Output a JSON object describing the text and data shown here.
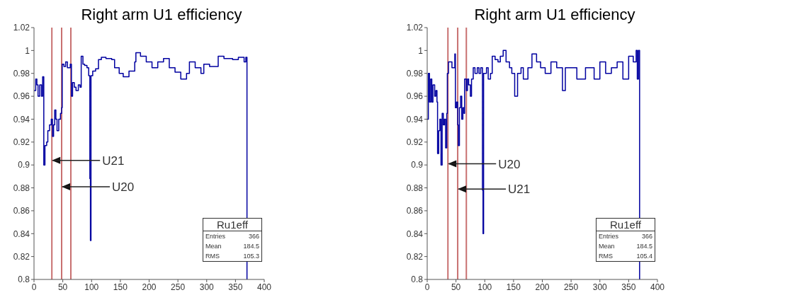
{
  "chart_data": [
    {
      "type": "step",
      "title": "Right arm U1 efficiency",
      "xlim": [
        0,
        400
      ],
      "xticks": [
        0,
        50,
        100,
        150,
        200,
        250,
        300,
        350,
        400
      ],
      "ylim": [
        0.8,
        1.02
      ],
      "yticks": [
        0.8,
        0.82,
        0.84,
        0.86,
        0.88,
        0.9,
        0.92,
        0.94,
        0.96,
        0.98,
        1,
        1.02
      ],
      "marker": "none",
      "line_style": "solid",
      "x": [
        0,
        3,
        5,
        7,
        10,
        13,
        15,
        17,
        19,
        22,
        24,
        27,
        30,
        32,
        34,
        36,
        38,
        40,
        43,
        46,
        48,
        49,
        52,
        55,
        58,
        63,
        65,
        67,
        70,
        73,
        77,
        80,
        82,
        85,
        88,
        92,
        95,
        97,
        98,
        99,
        102,
        107,
        112,
        117,
        125,
        135,
        140,
        148,
        155,
        165,
        175,
        177,
        185,
        195,
        205,
        215,
        225,
        235,
        245,
        255,
        265,
        270,
        280,
        290,
        295,
        305,
        320,
        330,
        345,
        355,
        365,
        368,
        370
      ],
      "series": [
        {
          "color": "#0000a0",
          "values": [
            0.965,
            0.975,
            0.97,
            0.96,
            0.97,
            0.96,
            0.977,
            0.9,
            0.917,
            0.92,
            0.93,
            0.935,
            0.94,
            0.925,
            0.935,
            0.948,
            0.94,
            0.93,
            0.94,
            0.945,
            0.95,
            0.988,
            0.986,
            0.99,
            0.985,
            0.988,
            0.96,
            0.972,
            0.968,
            0.965,
            0.97,
            0.968,
            0.995,
            0.988,
            0.987,
            0.985,
            0.978,
            0.888,
            0.834,
            0.978,
            0.982,
            0.984,
            0.992,
            0.994,
            0.993,
            0.992,
            0.985,
            0.98,
            0.977,
            0.982,
            0.99,
            0.998,
            0.995,
            0.99,
            0.985,
            0.99,
            0.993,
            0.985,
            0.981,
            0.975,
            0.98,
            0.99,
            0.985,
            0.98,
            0.988,
            0.986,
            0.995,
            0.993,
            0.992,
            0.994,
            0.99,
            0.994,
            0.8
          ]
        }
      ],
      "ref_lines": [
        {
          "axis": "x",
          "value": 31,
          "color": "#c87070"
        },
        {
          "axis": "x",
          "value": 48,
          "color": "#c87070"
        },
        {
          "axis": "x",
          "value": 64,
          "color": "#c87070"
        }
      ],
      "annotations": [
        {
          "text": "U21",
          "x": 31,
          "y": 0.904
        },
        {
          "text": "U20",
          "x": 48,
          "y": 0.881
        },
        "Ru1eff",
        "Entries",
        "366",
        "Mean",
        "184.5",
        "RMS",
        "105.3"
      ]
    },
    {
      "type": "step",
      "title": "Right arm U1 efficiency",
      "xlim": [
        0,
        400
      ],
      "xticks": [
        0,
        50,
        100,
        150,
        200,
        250,
        300,
        350,
        400
      ],
      "ylim": [
        0.8,
        1.02
      ],
      "yticks": [
        0.8,
        0.82,
        0.84,
        0.86,
        0.88,
        0.9,
        0.92,
        0.94,
        0.96,
        0.98,
        1,
        1.02
      ],
      "marker": "none",
      "line_style": "solid",
      "x": [
        0,
        2,
        4,
        6,
        8,
        10,
        13,
        15,
        17,
        18,
        20,
        22,
        24,
        26,
        28,
        30,
        32,
        34,
        35,
        37,
        40,
        43,
        46,
        48,
        49,
        51,
        53,
        54,
        56,
        58,
        60,
        62,
        64,
        65,
        68,
        70,
        72,
        75,
        77,
        80,
        83,
        87,
        90,
        93,
        96,
        97,
        98,
        100,
        103,
        106,
        110,
        113,
        118,
        123,
        127,
        132,
        137,
        143,
        147,
        152,
        157,
        163,
        167,
        175,
        182,
        190,
        197,
        205,
        215,
        225,
        235,
        240,
        250,
        260,
        275,
        290,
        300,
        310,
        320,
        330,
        340,
        350,
        358,
        363,
        365,
        367,
        369
      ],
      "series": [
        {
          "color": "#0000a0",
          "values": [
            0.94,
            0.98,
            0.955,
            0.975,
            0.955,
            0.97,
            0.96,
            0.965,
            0.955,
            0.91,
            0.93,
            0.94,
            0.9,
            0.945,
            0.935,
            0.94,
            0.915,
            0.945,
            0.98,
            0.99,
            0.99,
            0.985,
            0.985,
            0.997,
            0.95,
            0.955,
            0.935,
            0.917,
            0.95,
            0.96,
            0.94,
            0.95,
            0.945,
            0.975,
            0.965,
            0.975,
            0.97,
            0.96,
            0.975,
            0.985,
            0.98,
            0.985,
            0.98,
            0.985,
            0.878,
            0.84,
            0.98,
            0.98,
            0.985,
            0.975,
            0.98,
            0.995,
            0.992,
            0.99,
            0.995,
            1.0,
            0.99,
            0.985,
            0.98,
            0.96,
            0.98,
            0.985,
            0.975,
            0.985,
            0.997,
            0.99,
            0.985,
            0.98,
            0.99,
            0.985,
            0.965,
            0.985,
            0.985,
            0.975,
            0.985,
            0.975,
            0.99,
            0.98,
            0.985,
            0.99,
            0.975,
            0.995,
            0.99,
            1.0,
            0.975,
            1.0,
            0.8
          ]
        }
      ],
      "ref_lines": [
        {
          "axis": "x",
          "value": 36,
          "color": "#c87070"
        },
        {
          "axis": "x",
          "value": 53,
          "color": "#c87070"
        },
        {
          "axis": "x",
          "value": 68,
          "color": "#c87070"
        }
      ],
      "annotations": [
        {
          "text": "U20",
          "x": 36,
          "y": 0.901
        },
        {
          "text": "U21",
          "x": 53,
          "y": 0.879
        },
        "Ru1eff",
        "Entries",
        "366",
        "Mean",
        "184.5",
        "RMS",
        "105.4"
      ]
    }
  ]
}
